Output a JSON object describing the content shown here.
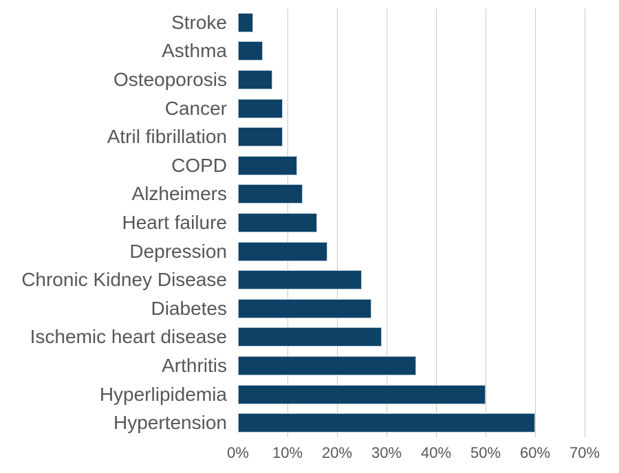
{
  "chart_data": {
    "type": "bar",
    "orientation": "horizontal",
    "title": "",
    "xlabel": "",
    "ylabel": "",
    "categories": [
      "Stroke",
      "Asthma",
      "Osteoporosis",
      "Cancer",
      "Atril fibrillation",
      "COPD",
      "Alzheimers",
      "Heart failure",
      "Depression",
      "Chronic Kidney Disease",
      "Diabetes",
      "Ischemic heart disease",
      "Arthritis",
      "Hyperlipidemia",
      "Hypertension"
    ],
    "values": [
      3,
      5,
      7,
      9,
      9,
      12,
      13,
      16,
      18,
      25,
      27,
      29,
      36,
      50,
      60
    ],
    "value_unit": "%",
    "xlim": [
      0,
      70
    ],
    "x_ticks": [
      "0%",
      "10%",
      "20%",
      "30%",
      "40%",
      "50%",
      "60%",
      "70%"
    ],
    "grid": "vertical-only",
    "legend": "none"
  },
  "colors": {
    "bar_fill": "#0e4166",
    "bar_edge": "#b3c8d8",
    "gridline": "#c9c9c9",
    "label_text": "#575757",
    "background": "#ffffff"
  }
}
